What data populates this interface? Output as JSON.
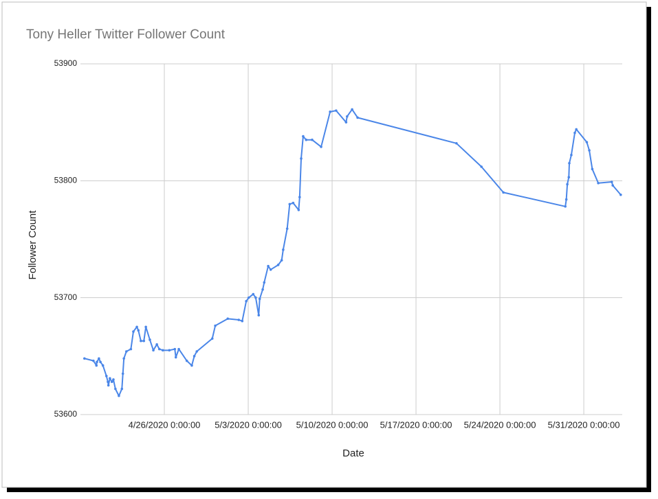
{
  "chart_data": {
    "type": "line",
    "title": "Tony Heller Twitter Follower Count",
    "x_label": "Date",
    "y_label": "Follower Count",
    "xlim": [
      "4/19/2020 0:00:00",
      "6/3/2020 5:00:00"
    ],
    "xticks": [
      "4/26/2020 0:00:00",
      "5/3/2020 0:00:00",
      "5/10/2020 0:00:00",
      "5/17/2020 0:00:00",
      "5/24/2020 0:00:00",
      "5/31/2020 0:00:00"
    ],
    "ylim": [
      53600,
      53900
    ],
    "yticks": [
      53600,
      53700,
      53800,
      53900
    ],
    "grid": true,
    "series": [
      {
        "name": "Follower Count",
        "color": "#4a86e8",
        "x": [
          "4/19/2020 8:00:00",
          "4/20/2020 2:00:00",
          "4/20/2020 8:00:00",
          "4/20/2020 9:00:00",
          "4/20/2020 13:00:00",
          "4/20/2020 16:00:00",
          "4/20/2020 21:00:00",
          "4/21/2020 4:00:00",
          "4/21/2020 7:00:00",
          "4/21/2020 8:00:00",
          "4/21/2020 11:00:00",
          "4/21/2020 15:00:00",
          "4/21/2020 18:00:00",
          "4/21/2020 22:00:00",
          "4/22/2020 5:00:00",
          "4/22/2020 11:00:00",
          "4/22/2020 13:00:00",
          "4/22/2020 15:00:00",
          "4/22/2020 20:00:00",
          "4/23/2020 5:00:00",
          "4/23/2020 10:00:00",
          "4/23/2020 17:00:00",
          "4/23/2020 20:00:00",
          "4/24/2020 1:00:00",
          "4/24/2020 7:00:00",
          "4/24/2020 11:00:00",
          "4/24/2020 19:00:00",
          "4/25/2020 2:00:00",
          "4/25/2020 9:00:00",
          "4/25/2020 14:00:00",
          "4/25/2020 21:00:00",
          "4/26/2020 10:00:00",
          "4/26/2020 21:00:00",
          "4/26/2020 23:00:00",
          "4/27/2020 5:00:00",
          "4/27/2020 21:00:00",
          "4/28/2020 7:00:00",
          "4/28/2020 12:00:00",
          "4/28/2020 17:00:00",
          "4/30/2020 0:00:00",
          "4/30/2020 6:00:00",
          "5/1/2020 7:00:00",
          "5/2/2020 5:00:00",
          "5/2/2020 12:00:00",
          "5/2/2020 20:00:00",
          "5/3/2020 1:00:00",
          "5/3/2020 10:00:00",
          "5/3/2020 15:00:00",
          "5/3/2020 21:00:00",
          "5/3/2020 23:00:00",
          "5/4/2020 5:00:00",
          "5/4/2020 8:00:00",
          "5/4/2020 16:00:00",
          "5/4/2020 21:00:00",
          "5/5/2020 12:00:00",
          "5/5/2020 19:00:00",
          "5/5/2020 22:00:00",
          "5/6/2020 6:00:00",
          "5/6/2020 11:00:00",
          "5/6/2020 18:00:00",
          "5/7/2020 5:00:00",
          "5/7/2020 7:00:00",
          "5/7/2020 10:00:00",
          "5/7/2020 14:00:00",
          "5/7/2020 20:00:00",
          "5/8/2020 8:00:00",
          "5/9/2020 2:00:00",
          "5/9/2020 20:00:00",
          "5/10/2020 8:00:00",
          "5/11/2020 4:00:00",
          "5/11/2020 6:00:00",
          "5/11/2020 16:00:00",
          "5/12/2020 3:00:00",
          "5/20/2020 9:00:00",
          "5/22/2020 11:00:00",
          "5/24/2020 7:00:00",
          "5/29/2020 11:00:00",
          "5/29/2020 13:00:00",
          "5/29/2020 15:00:00",
          "5/29/2020 18:00:00",
          "5/29/2020 19:00:00",
          "5/29/2020 23:00:00",
          "5/30/2020 6:00:00",
          "5/30/2020 9:00:00",
          "5/31/2020 6:00:00",
          "5/31/2020 11:00:00",
          "5/31/2020 17:00:00",
          "6/1/2020 5:00:00",
          "6/2/2020 8:00:00",
          "6/2/2020 10:00:00",
          "6/3/2020 2:00:00"
        ],
        "values": [
          53648,
          53646,
          53642,
          53645,
          53648,
          53645,
          53642,
          53633,
          53628,
          53625,
          53631,
          53628,
          53630,
          53622,
          53616,
          53622,
          53635,
          53648,
          53654,
          53656,
          53671,
          53675,
          53672,
          53663,
          53663,
          53675,
          53664,
          53655,
          53660,
          53656,
          53655,
          53655,
          53656,
          53649,
          53656,
          53646,
          53642,
          53650,
          53654,
          53665,
          53676,
          53682,
          53681,
          53680,
          53697,
          53700,
          53703,
          53700,
          53685,
          53699,
          53707,
          53713,
          53727,
          53724,
          53728,
          53732,
          53741,
          53759,
          53780,
          53781,
          53775,
          53786,
          53819,
          53838,
          53835,
          53835,
          53829,
          53859,
          53860,
          53850,
          53855,
          53861,
          53854,
          53832,
          53812,
          53790,
          53778,
          53784,
          53797,
          53803,
          53815,
          53822,
          53841,
          53844,
          53833,
          53826,
          53810,
          53798,
          53799,
          53796,
          53788
        ]
      }
    ]
  }
}
